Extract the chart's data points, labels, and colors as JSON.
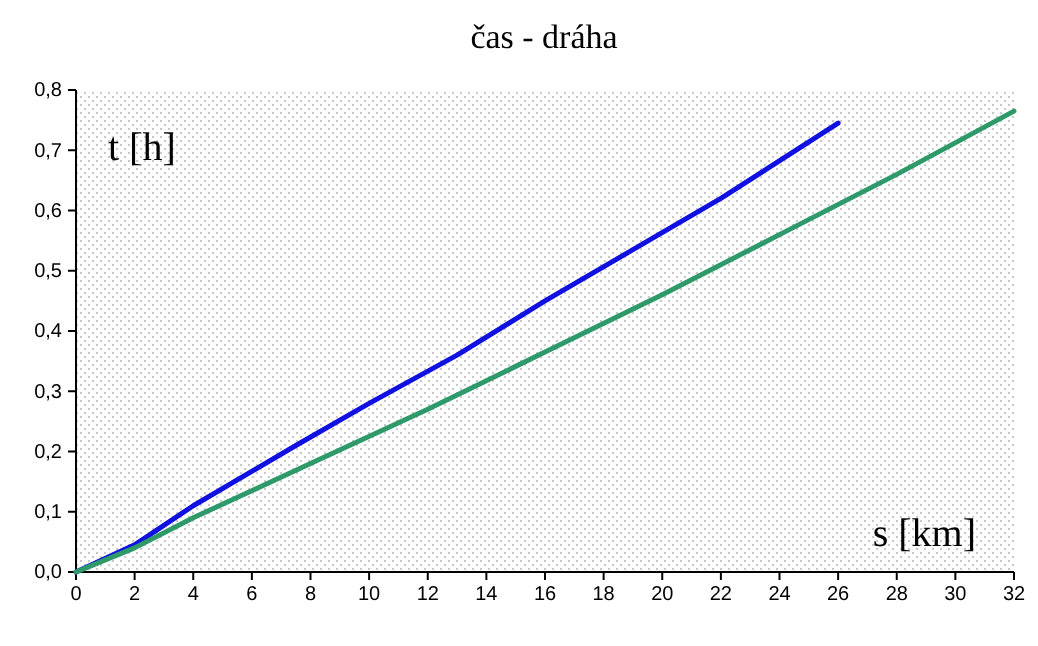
{
  "chart_data": {
    "type": "line",
    "title": "čas - dráha",
    "xlabel": "s [km]",
    "ylabel": "t [h]",
    "series": [
      {
        "color": "#1010e0",
        "x": [
          0,
          2,
          4,
          7.5,
          10,
          13,
          16,
          19,
          22,
          26
        ],
        "values": [
          0,
          0.045,
          0.11,
          0.21,
          0.28,
          0.36,
          0.45,
          0.535,
          0.62,
          0.745
        ]
      },
      {
        "color": "#2e9a6a",
        "x": [
          0,
          2,
          4,
          8,
          12,
          16,
          20,
          24,
          28,
          32
        ],
        "values": [
          0,
          0.04,
          0.09,
          0.18,
          0.27,
          0.365,
          0.46,
          0.56,
          0.66,
          0.765
        ]
      }
    ],
    "xlim": [
      0,
      32
    ],
    "xticks": [
      0,
      2,
      4,
      6,
      8,
      10,
      12,
      14,
      16,
      18,
      20,
      22,
      24,
      26,
      28,
      30,
      32
    ],
    "ylim": [
      0,
      0.8
    ],
    "yticks": [
      {
        "value": 0,
        "label": "0,0"
      },
      {
        "value": 0.1,
        "label": "0,1"
      },
      {
        "value": 0.2,
        "label": "0,2"
      },
      {
        "value": 0.3,
        "label": "0,3"
      },
      {
        "value": 0.4,
        "label": "0,4"
      },
      {
        "value": 0.5,
        "label": "0,5"
      },
      {
        "value": 0.6,
        "label": "0,6"
      },
      {
        "value": 0.7,
        "label": "0,7"
      },
      {
        "value": 0.8,
        "label": "0,8"
      }
    ],
    "line_style": "solid",
    "marker": "none"
  }
}
